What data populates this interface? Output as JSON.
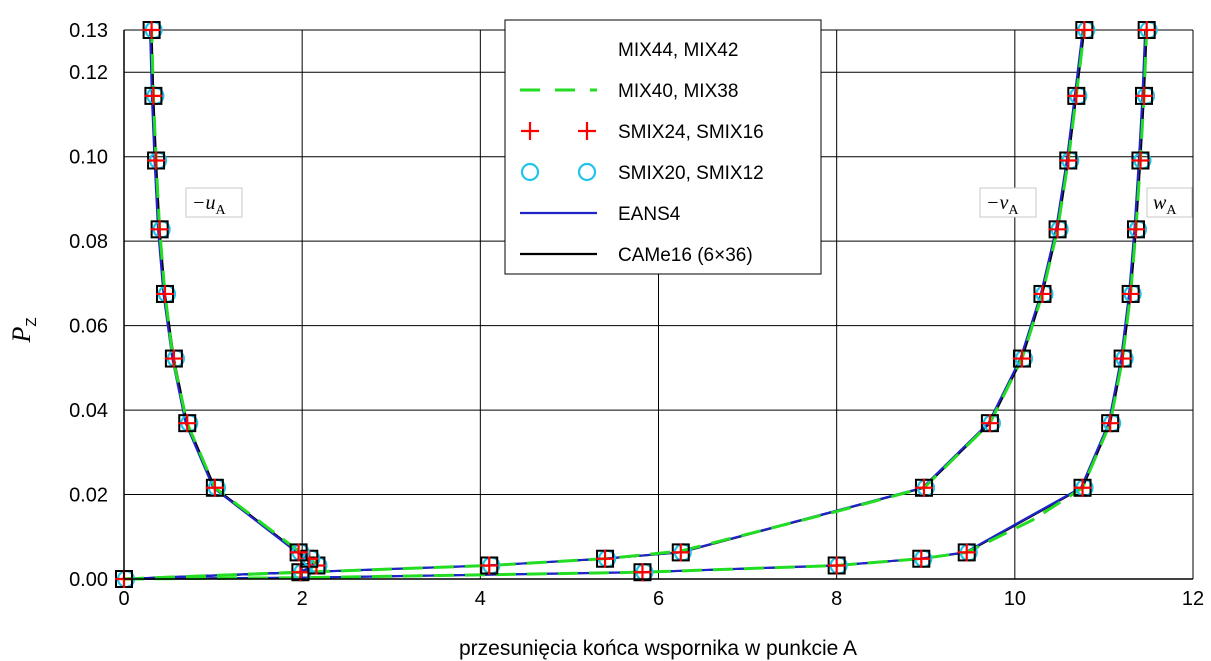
{
  "chart_data": {
    "type": "line",
    "xlabel": "przesunięcia końca wspornika w punkcie A",
    "ylabel_main": "P",
    "ylabel_sub": "Z",
    "xlim": [
      0,
      12
    ],
    "ylim": [
      0,
      0.13
    ],
    "xticks": [
      "0",
      "2",
      "4",
      "6",
      "8",
      "10",
      "12"
    ],
    "yticks": [
      "0.00",
      "0.02",
      "0.04",
      "0.06",
      "0.08",
      "0.10",
      "0.12",
      "0.13"
    ],
    "grid": true,
    "legend_position": "top-center",
    "legend": [
      {
        "label": "MIX44, MIX42",
        "style": "square",
        "color": "#000000"
      },
      {
        "label": "MIX40, MIX38",
        "style": "dashed",
        "color": "#22dd22"
      },
      {
        "label": "SMIX24, SMIX16",
        "style": "plus",
        "color": "#ff0000"
      },
      {
        "label": "SMIX20, SMIX12",
        "style": "circle",
        "color": "#22c4e8"
      },
      {
        "label": "EANS4",
        "style": "line",
        "color": "#1f24c8"
      },
      {
        "label": "CAMe16 (6×36)",
        "style": "line",
        "color": "#000000"
      }
    ],
    "curve_labels": [
      {
        "main": "−u",
        "sub": "A"
      },
      {
        "main": "−v",
        "sub": "A"
      },
      {
        "main": "w",
        "sub": "A"
      }
    ],
    "series": [
      {
        "curve": "-u_A",
        "points": [
          [
            0,
            0
          ],
          [
            1.98,
            0.0016
          ],
          [
            2.16,
            0.0032
          ],
          [
            2.08,
            0.0048
          ],
          [
            1.96,
            0.0063
          ],
          [
            1.02,
            0.0216
          ],
          [
            0.71,
            0.0369
          ],
          [
            0.56,
            0.0522
          ],
          [
            0.46,
            0.0675
          ],
          [
            0.4,
            0.0828
          ],
          [
            0.36,
            0.0991
          ],
          [
            0.33,
            0.1144
          ],
          [
            0.31,
            0.13
          ]
        ],
        "dashed_points": [
          [
            0,
            0
          ],
          [
            1.98,
            0.0016
          ],
          [
            2.16,
            0.0032
          ],
          [
            2.1,
            0.0048
          ],
          [
            1.98,
            0.0063
          ],
          [
            1.5,
            0.014
          ],
          [
            1.02,
            0.0216
          ],
          [
            0.71,
            0.0369
          ],
          [
            0.55,
            0.0522
          ],
          [
            0.46,
            0.0675
          ],
          [
            0.4,
            0.0828
          ],
          [
            0.36,
            0.0991
          ],
          [
            0.33,
            0.1144
          ],
          [
            0.31,
            0.13
          ]
        ]
      },
      {
        "curve": "-v_A",
        "points": [
          [
            0,
            0
          ],
          [
            1.0,
            0.0008
          ],
          [
            2.0,
            0.0016
          ],
          [
            4.1,
            0.0032
          ],
          [
            5.4,
            0.0048
          ],
          [
            6.25,
            0.0063
          ],
          [
            8.98,
            0.0216
          ],
          [
            9.72,
            0.0369
          ],
          [
            10.08,
            0.0522
          ],
          [
            10.31,
            0.0675
          ],
          [
            10.48,
            0.0828
          ],
          [
            10.6,
            0.0991
          ],
          [
            10.69,
            0.1144
          ],
          [
            10.78,
            0.13
          ]
        ],
        "dashed_points": [
          [
            0,
            0
          ],
          [
            1.0,
            0.0008
          ],
          [
            2.0,
            0.0016
          ],
          [
            4.1,
            0.0032
          ],
          [
            5.4,
            0.0048
          ],
          [
            6.25,
            0.0066
          ],
          [
            8.0,
            0.016
          ],
          [
            8.98,
            0.0216
          ],
          [
            9.72,
            0.0369
          ],
          [
            10.08,
            0.0522
          ],
          [
            10.31,
            0.0675
          ],
          [
            10.48,
            0.0828
          ],
          [
            10.6,
            0.0991
          ],
          [
            10.69,
            0.1144
          ],
          [
            10.78,
            0.13
          ]
        ]
      },
      {
        "curve": "w_A",
        "points": [
          [
            0,
            0
          ],
          [
            2.0,
            0.0003
          ],
          [
            5.82,
            0.0016
          ],
          [
            8.0,
            0.0032
          ],
          [
            8.95,
            0.0048
          ],
          [
            9.46,
            0.0063
          ],
          [
            10.76,
            0.0216
          ],
          [
            11.07,
            0.0369
          ],
          [
            11.21,
            0.0522
          ],
          [
            11.3,
            0.0675
          ],
          [
            11.36,
            0.0828
          ],
          [
            11.41,
            0.0991
          ],
          [
            11.45,
            0.1144
          ],
          [
            11.48,
            0.13
          ]
        ],
        "dashed_points": [
          [
            0,
            0
          ],
          [
            2.0,
            0.0003
          ],
          [
            5.82,
            0.0016
          ],
          [
            8.0,
            0.0032
          ],
          [
            8.95,
            0.0048
          ],
          [
            9.46,
            0.0063
          ],
          [
            10.2,
            0.014
          ],
          [
            10.76,
            0.0216
          ],
          [
            11.07,
            0.0369
          ],
          [
            11.21,
            0.0522
          ],
          [
            11.3,
            0.0675
          ],
          [
            11.36,
            0.0828
          ],
          [
            11.41,
            0.0991
          ],
          [
            11.45,
            0.1144
          ],
          [
            11.48,
            0.13
          ]
        ]
      }
    ],
    "marker_points": [
      [
        0,
        0
      ],
      [
        1.98,
        0.0016
      ],
      [
        2.16,
        0.0032
      ],
      [
        2.08,
        0.0048
      ],
      [
        1.96,
        0.0063
      ],
      [
        1.02,
        0.0216
      ],
      [
        0.71,
        0.0369
      ],
      [
        0.56,
        0.0522
      ],
      [
        0.46,
        0.0675
      ],
      [
        0.4,
        0.0828
      ],
      [
        0.36,
        0.0991
      ],
      [
        0.33,
        0.1144
      ],
      [
        0.31,
        0.13
      ],
      [
        4.1,
        0.0032
      ],
      [
        5.4,
        0.0048
      ],
      [
        6.25,
        0.0063
      ],
      [
        8.98,
        0.0216
      ],
      [
        9.72,
        0.0369
      ],
      [
        10.08,
        0.0522
      ],
      [
        10.31,
        0.0675
      ],
      [
        10.48,
        0.0828
      ],
      [
        10.6,
        0.0991
      ],
      [
        10.69,
        0.1144
      ],
      [
        10.78,
        0.13
      ],
      [
        5.82,
        0.0016
      ],
      [
        8.0,
        0.0032
      ],
      [
        8.95,
        0.0048
      ],
      [
        9.46,
        0.0063
      ],
      [
        10.76,
        0.0216
      ],
      [
        11.07,
        0.0369
      ],
      [
        11.21,
        0.0522
      ],
      [
        11.3,
        0.0675
      ],
      [
        11.36,
        0.0828
      ],
      [
        11.41,
        0.0991
      ],
      [
        11.45,
        0.1144
      ],
      [
        11.48,
        0.13
      ]
    ]
  }
}
